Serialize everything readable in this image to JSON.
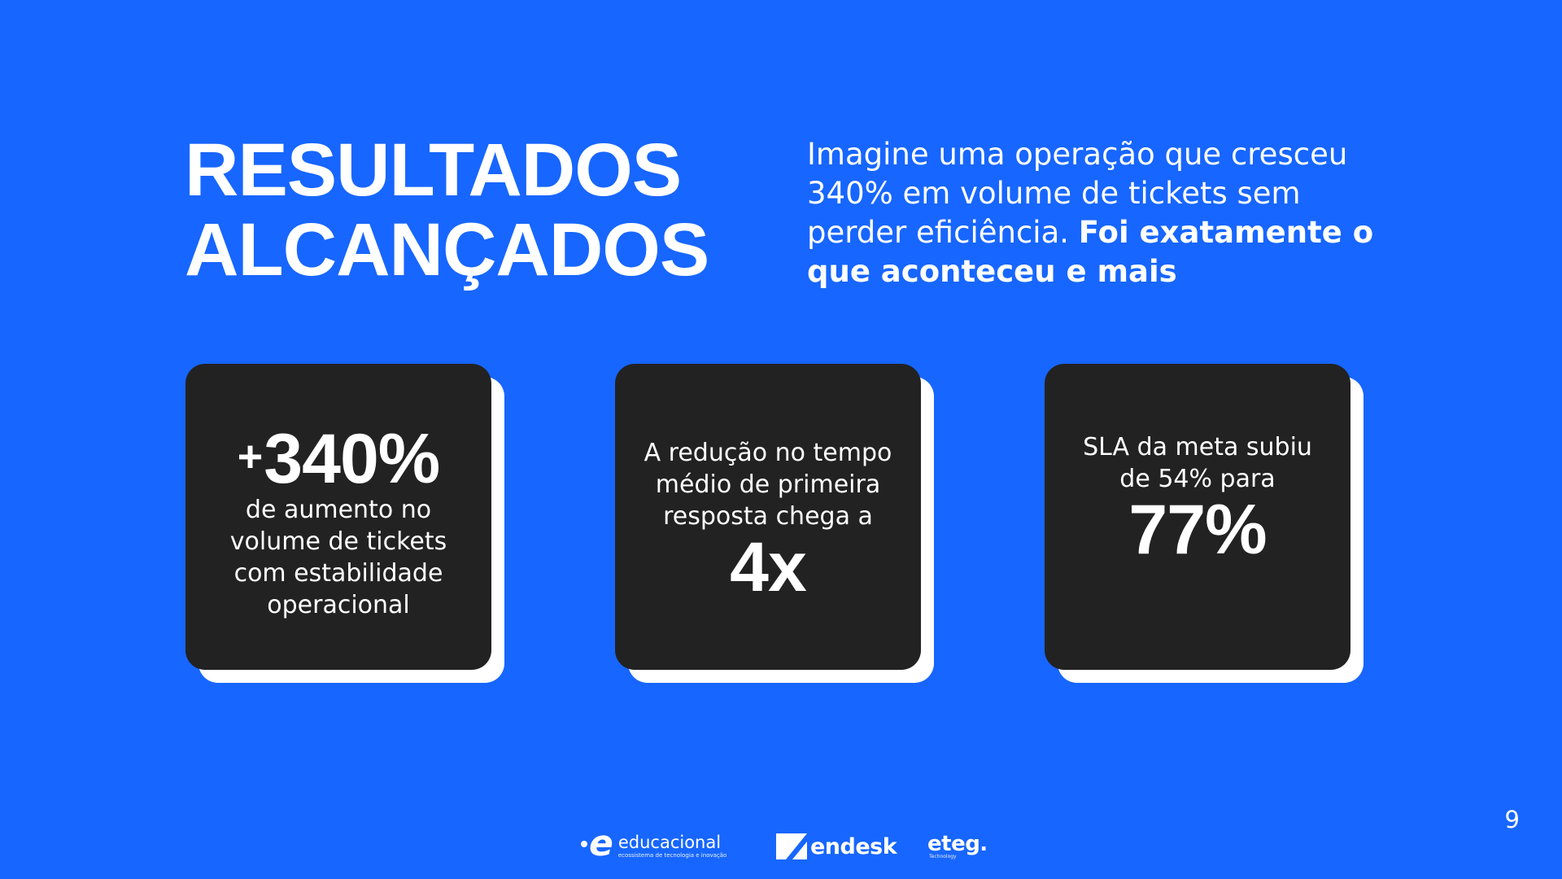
{
  "title": {
    "line1": "RESULTADOS",
    "line2": "ALCANÇADOS"
  },
  "intro": {
    "text": "Imagine uma operação que cresceu 340% em volume de tickets sem perder eficiência. ",
    "bold": "Foi exatamente o que aconteceu e mais"
  },
  "cards": [
    {
      "big_prefix": "+",
      "big": "340%",
      "text_after": "de aumento no volume de tickets com estabilidade operacional"
    },
    {
      "text_before": "A redução no tempo médio de primeira resposta chega a",
      "big": "4x"
    },
    {
      "text_before": "SLA da meta subiu de 54% para",
      "big": "77%"
    }
  ],
  "page_number": "9",
  "logos": {
    "educacional": {
      "name": "educacional",
      "tagline": "ecossistema de tecnologia e inovação",
      "icon": "e-mark-logo"
    },
    "zendesk": {
      "name": "endesk",
      "icon": "zendesk-z-logo"
    },
    "eteg": {
      "name": "eteg.",
      "tagline": "Technology"
    }
  },
  "colors": {
    "background": "#1766FF",
    "card": "#222222",
    "card_shadow": "#FFFFFF",
    "text": "#FFFFFF"
  }
}
